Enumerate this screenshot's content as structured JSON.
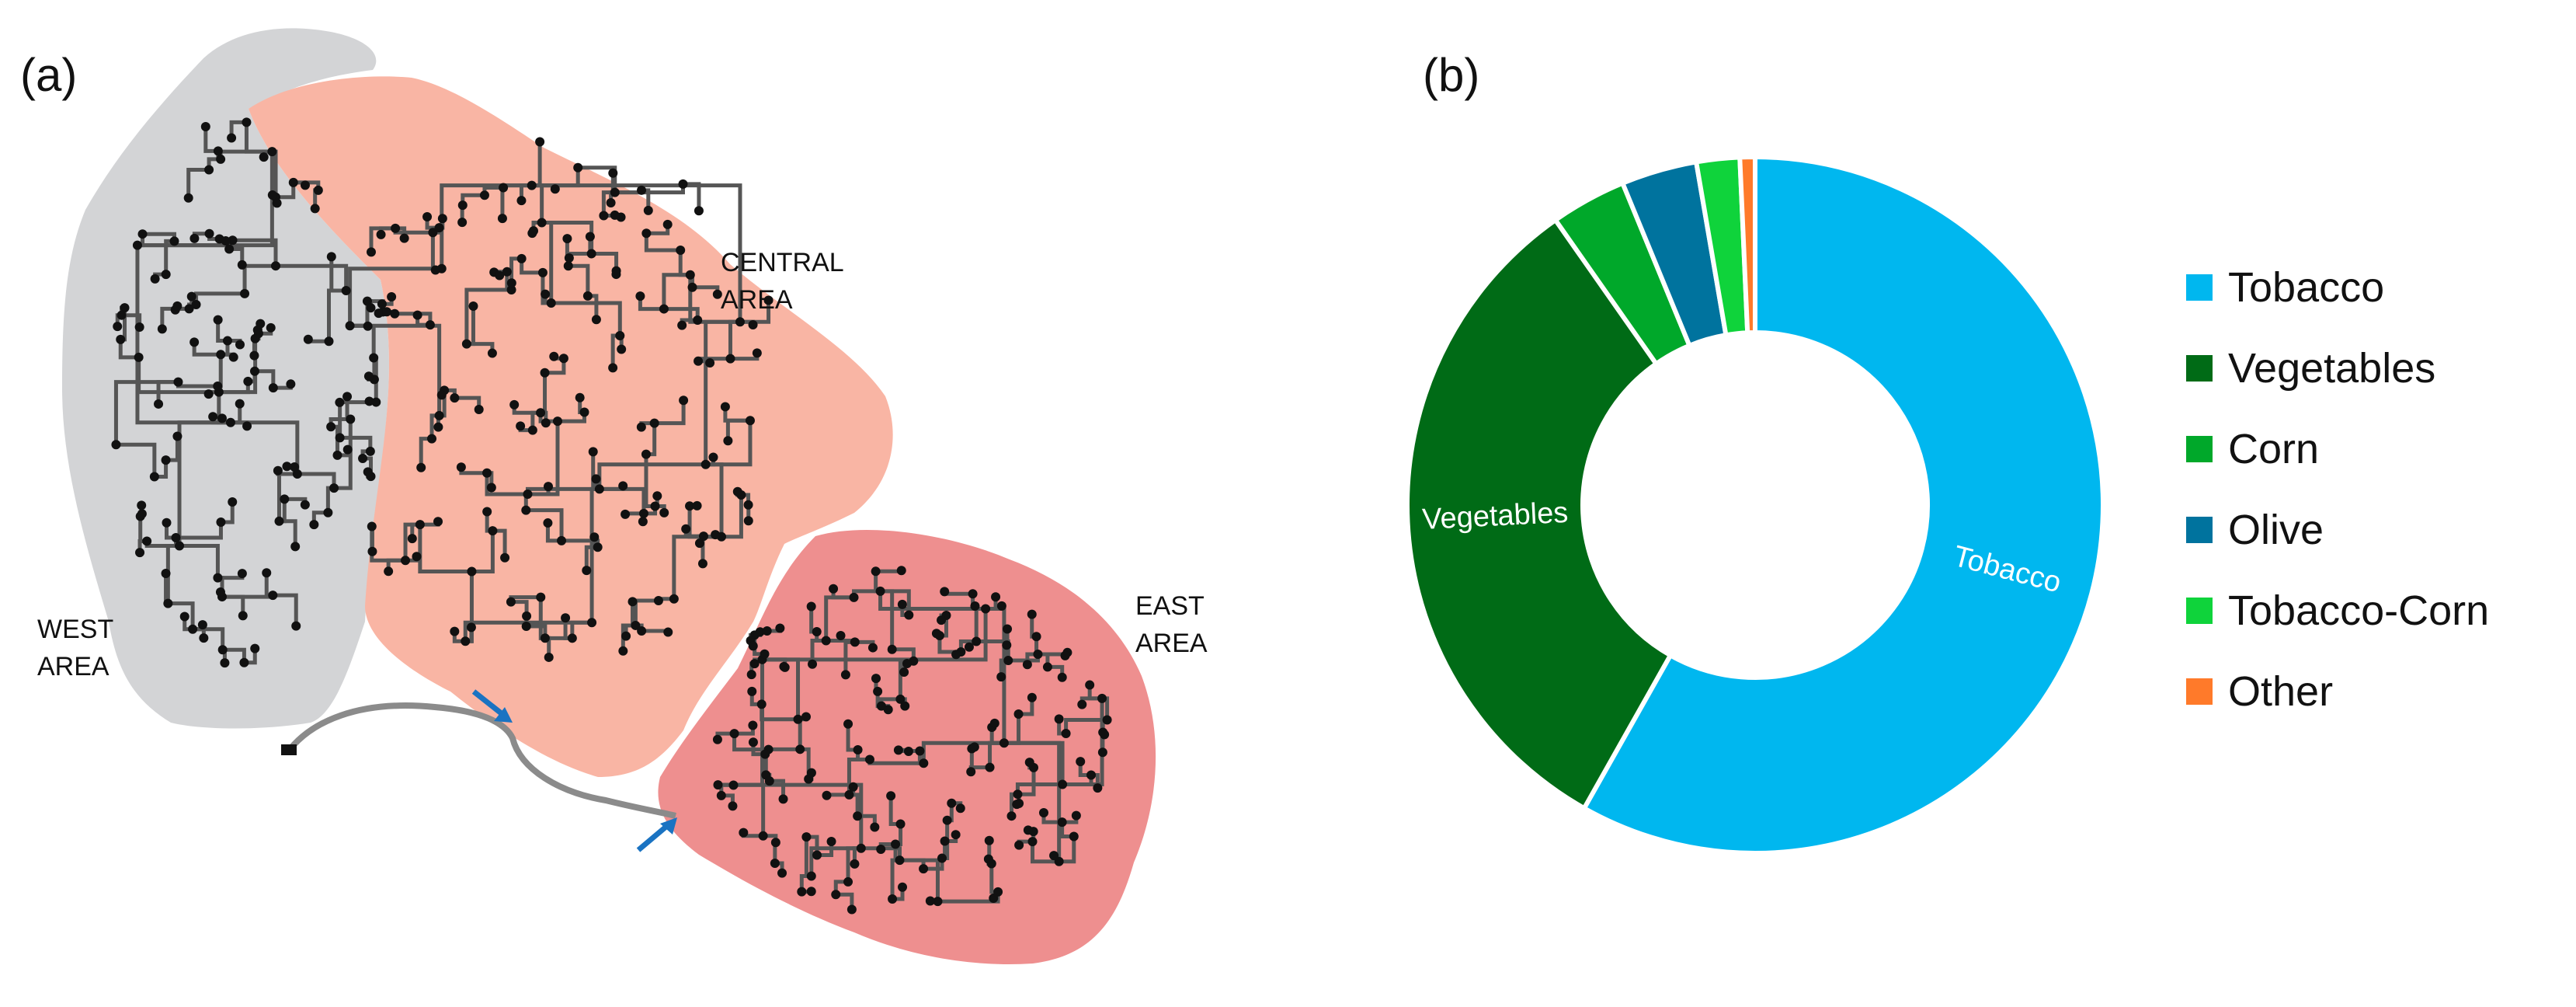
{
  "panel_a": {
    "label": "(a)",
    "areas": [
      {
        "name": "WEST",
        "line2": "AREA",
        "color": "#d3d4d6"
      },
      {
        "name": "CENTRAL",
        "line2": "AREA",
        "color": "#f9b5a4"
      },
      {
        "name": "EAST",
        "line2": "AREA",
        "color": "#ee8f8f"
      }
    ],
    "inlet_arrow_color": "#1a73c2"
  },
  "panel_b": {
    "label": "(b)",
    "chart_data": {
      "type": "pie",
      "title": "",
      "categories": [
        "Tobacco",
        "Vegetables",
        "Corn",
        "Olive",
        "Tobacco-Corn",
        "Other"
      ],
      "values": [
        58.0,
        32.0,
        3.5,
        3.5,
        2.0,
        0.7
      ],
      "colors": [
        "#00b7ef",
        "#006b16",
        "#00a82a",
        "#00739e",
        "#0fd33b",
        "#ff7a2a"
      ],
      "slice_labels": [
        "Tobacco",
        "Vegetables",
        "",
        "",
        "",
        ""
      ],
      "legend_position": "right",
      "donut": true
    }
  }
}
